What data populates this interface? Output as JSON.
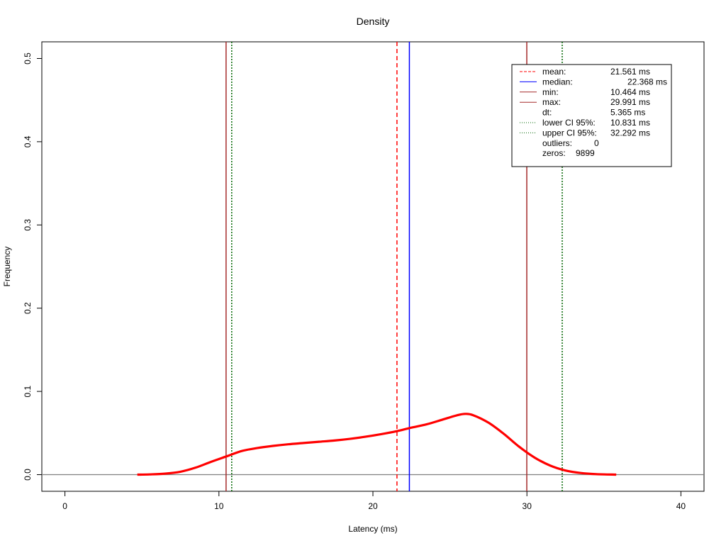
{
  "chart_data": {
    "type": "line",
    "title": "Density",
    "xlabel": "Latency (ms)",
    "ylabel": "Frequency",
    "xlim": [
      -1.5,
      41.5
    ],
    "ylim": [
      -0.02,
      0.52
    ],
    "xticks": [
      0,
      10,
      20,
      30,
      40
    ],
    "yticks": [
      0.0,
      0.1,
      0.2,
      0.3,
      0.4,
      0.5
    ],
    "ytick_labels": [
      "0.0",
      "0.1",
      "0.2",
      "0.3",
      "0.4",
      "0.5"
    ],
    "grid": false,
    "baseline": 0,
    "density": {
      "color": "#ff0000",
      "x": [
        4.7,
        5.5,
        6.5,
        7.5,
        8.5,
        9.5,
        10.5,
        11.5,
        12.5,
        13.5,
        14.5,
        15.5,
        16.5,
        17.5,
        18.5,
        19.5,
        20.5,
        21.5,
        22.5,
        23.5,
        24.5,
        25.5,
        26.0,
        26.5,
        27.5,
        28.5,
        29.5,
        30.5,
        31.5,
        32.5,
        33.5,
        34.5,
        35.8
      ],
      "y": [
        0.0,
        0.0003,
        0.0012,
        0.0035,
        0.0085,
        0.0155,
        0.022,
        0.0285,
        0.032,
        0.0345,
        0.0365,
        0.038,
        0.0395,
        0.041,
        0.043,
        0.0455,
        0.0485,
        0.052,
        0.0565,
        0.0605,
        0.066,
        0.0715,
        0.073,
        0.0715,
        0.0625,
        0.049,
        0.0335,
        0.0205,
        0.011,
        0.005,
        0.002,
        0.0006,
        0.0
      ]
    },
    "vlines": [
      {
        "key": "mean",
        "x": 21.561,
        "color": "#ff0000",
        "style": "dashed"
      },
      {
        "key": "median",
        "x": 22.368,
        "color": "#0000ff",
        "style": "solid"
      },
      {
        "key": "min",
        "x": 10.464,
        "color": "#a52a2a",
        "style": "solid"
      },
      {
        "key": "max",
        "x": 29.991,
        "color": "#a52a2a",
        "style": "solid"
      },
      {
        "key": "lower",
        "x": 10.831,
        "color": "#006400",
        "style": "dotted"
      },
      {
        "key": "upper",
        "x": 32.292,
        "color": "#006400",
        "style": "dotted"
      }
    ],
    "legend": {
      "placement": "top-right",
      "entries": [
        {
          "label": "mean:",
          "value": "21.561 ms",
          "color": "#ff0000",
          "style": "dashed"
        },
        {
          "label": "median:",
          "value": "22.368 ms",
          "color": "#0000ff",
          "style": "solid"
        },
        {
          "label": "min:",
          "value": "10.464 ms",
          "color": "#a52a2a",
          "style": "solid"
        },
        {
          "label": "max:",
          "value": "29.991 ms",
          "color": "#a52a2a",
          "style": "solid"
        },
        {
          "label": "dt:",
          "value": "5.365 ms",
          "color": "",
          "style": "none"
        },
        {
          "label": "lower CI 95%:",
          "value": "10.831 ms",
          "color": "#006400",
          "style": "dotted"
        },
        {
          "label": "upper CI 95%:",
          "value": "32.292 ms",
          "color": "#006400",
          "style": "dotted"
        },
        {
          "label": "outliers:",
          "value": "0",
          "color": "",
          "style": "none"
        },
        {
          "label": "zeros:",
          "value": "9899",
          "color": "",
          "style": "none"
        }
      ]
    }
  }
}
